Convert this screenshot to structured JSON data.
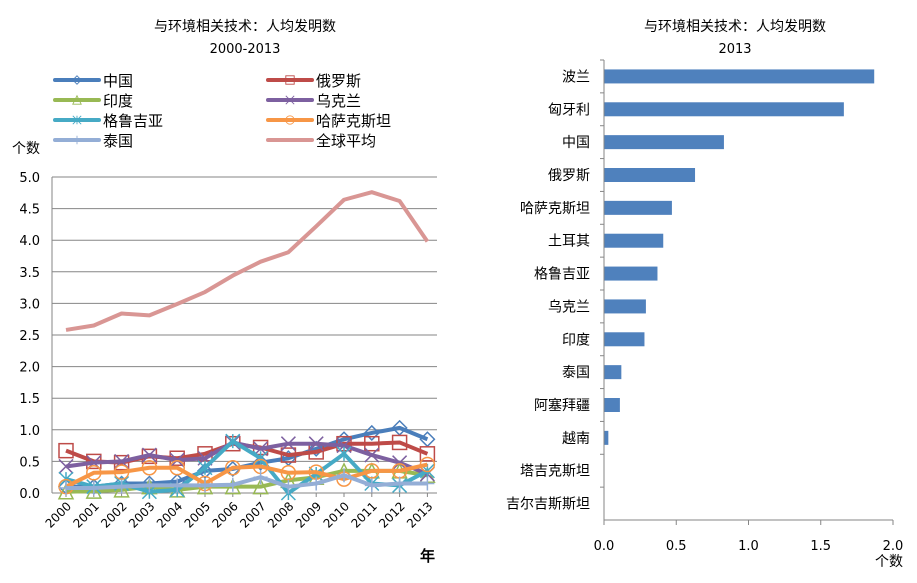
{
  "chart_data": [
    {
      "type": "line",
      "title": "与环境相关技术：人均发明数",
      "subtitle": "2000-2013",
      "ylabel": "个数",
      "xlabel": "年",
      "ylim": [
        0,
        5.0
      ],
      "yticks": [
        "0.0",
        "0.5",
        "1.0",
        "1.5",
        "2.0",
        "2.5",
        "3.0",
        "3.5",
        "4.0",
        "4.5",
        "5.0"
      ],
      "x": [
        "2000",
        "2001",
        "2002",
        "2003",
        "2004",
        "2005",
        "2006",
        "2007",
        "2008",
        "2009",
        "2010",
        "2011",
        "2012",
        "2013"
      ],
      "legend_placement": "top",
      "series": [
        {
          "name": "中国",
          "color": "#4a7ebb",
          "marker": "diamond",
          "values": [
            0.1,
            0.1,
            0.15,
            0.15,
            0.18,
            0.35,
            0.38,
            0.48,
            0.55,
            0.7,
            0.85,
            0.95,
            1.03,
            0.85
          ]
        },
        {
          "name": "俄罗斯",
          "color": "#be4b48",
          "marker": "square",
          "values": [
            0.67,
            0.5,
            0.48,
            0.58,
            0.55,
            0.62,
            0.78,
            0.72,
            0.6,
            0.65,
            0.78,
            0.78,
            0.8,
            0.62
          ]
        },
        {
          "name": "印度",
          "color": "#98b954",
          "marker": "triangle",
          "values": [
            0.02,
            0.03,
            0.05,
            0.1,
            0.05,
            0.1,
            0.1,
            0.1,
            0.2,
            0.25,
            0.35,
            0.35,
            0.35,
            0.28
          ]
        },
        {
          "name": "乌克兰",
          "color": "#7d60a0",
          "marker": "x",
          "values": [
            0.42,
            0.48,
            0.5,
            0.6,
            0.52,
            0.55,
            0.8,
            0.7,
            0.78,
            0.78,
            0.75,
            0.6,
            0.48,
            0.3
          ]
        },
        {
          "name": "格鲁吉亚",
          "color": "#46aac5",
          "marker": "star",
          "values": [
            0.22,
            0.1,
            0.15,
            0.02,
            0.05,
            0.4,
            0.82,
            0.55,
            0.0,
            0.3,
            0.62,
            0.15,
            0.12,
            0.35
          ]
        },
        {
          "name": "哈萨克斯坦",
          "color": "#f79646",
          "marker": "circle",
          "values": [
            0.1,
            0.32,
            0.33,
            0.4,
            0.4,
            0.15,
            0.4,
            0.42,
            0.32,
            0.33,
            0.22,
            0.35,
            0.35,
            0.45
          ]
        },
        {
          "name": "泰国",
          "color": "#94aed6",
          "marker": "plus",
          "values": [
            0.08,
            0.08,
            0.1,
            0.12,
            0.12,
            0.12,
            0.13,
            0.25,
            0.1,
            0.15,
            0.28,
            0.12,
            0.15,
            0.15
          ]
        },
        {
          "name": "全球平均",
          "color": "#d99694",
          "marker": "none",
          "values": [
            2.58,
            2.65,
            2.84,
            2.81,
            2.99,
            3.18,
            3.44,
            3.66,
            3.81,
            4.22,
            4.64,
            4.76,
            4.62,
            3.98
          ]
        }
      ]
    },
    {
      "type": "bar",
      "orientation": "horizontal",
      "title": "与环境相关技术：人均发明数",
      "subtitle": "2013",
      "xlabel": "个数",
      "xlim": [
        0,
        2.0
      ],
      "xticks": [
        "0.0",
        "0.5",
        "1.0",
        "1.5",
        "2.0"
      ],
      "color": "#4f81bd",
      "categories": [
        "波兰",
        "匈牙利",
        "中国",
        "俄罗斯",
        "哈萨克斯坦",
        "土耳其",
        "格鲁吉亚",
        "乌克兰",
        "印度",
        "泰国",
        "阿塞拜疆",
        "越南",
        "塔吉克斯坦",
        "吉尔吉斯斯坦"
      ],
      "values": [
        1.87,
        1.66,
        0.83,
        0.63,
        0.47,
        0.41,
        0.37,
        0.29,
        0.28,
        0.12,
        0.11,
        0.03,
        0,
        0
      ]
    }
  ]
}
